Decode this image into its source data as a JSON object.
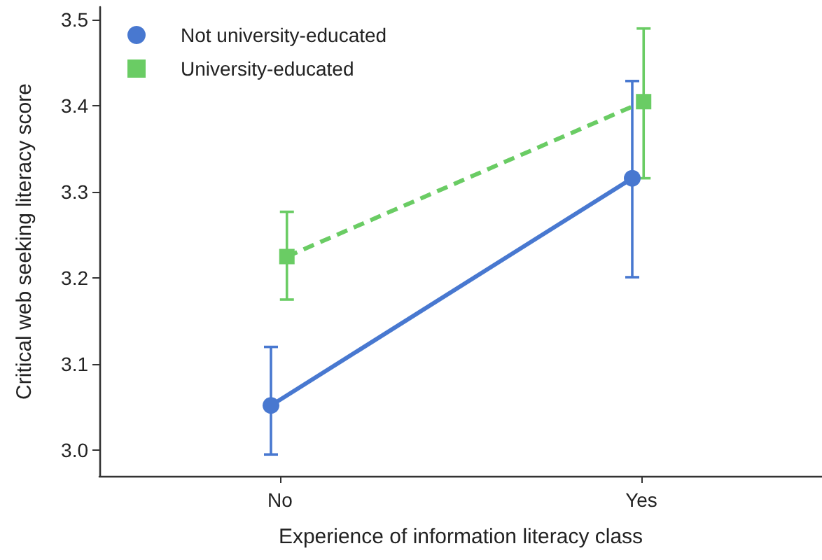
{
  "chart_data": {
    "type": "line",
    "xlabel": "Experience of information literacy class",
    "ylabel": "Critical web seeking literacy score",
    "categories": [
      "No",
      "Yes"
    ],
    "series": [
      {
        "name": "Not university-educated",
        "color": "#4878d0",
        "marker": "circle",
        "line_style": "solid",
        "values": [
          3.052,
          3.316
        ],
        "errors": [
          [
            2.995,
            3.12
          ],
          [
            3.201,
            3.429
          ]
        ]
      },
      {
        "name": "University-educated",
        "color": "#6acc64",
        "marker": "square",
        "line_style": "dashed",
        "values": [
          3.225,
          3.405
        ],
        "errors": [
          [
            3.175,
            3.277
          ],
          [
            3.316,
            3.49
          ]
        ]
      }
    ],
    "ylim": [
      2.97,
      3.515
    ],
    "yticks": [
      {
        "value": 3,
        "label": "3.0"
      },
      3.1,
      3.2,
      3.3,
      3.4,
      3.5
    ],
    "grid": false,
    "legend": "top left"
  }
}
